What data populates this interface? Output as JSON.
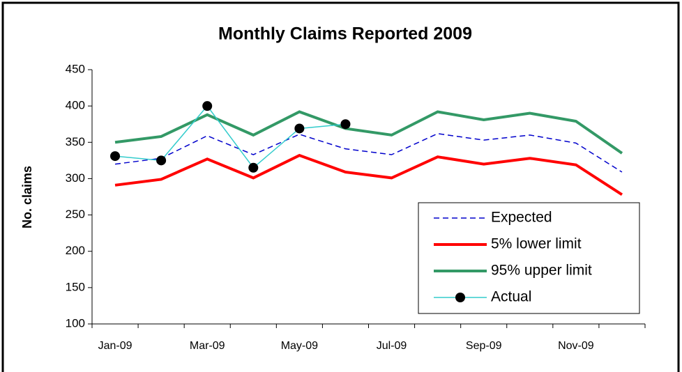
{
  "chart_data": {
    "type": "line",
    "title": "Monthly Claims Reported 2009",
    "y_label": "No. claims",
    "categories": [
      "Jan-09",
      null,
      "Mar-09",
      null,
      "May-09",
      null,
      "Jul-09",
      null,
      "Sep-09",
      null,
      "Nov-09",
      null
    ],
    "series": [
      {
        "name": "Expected",
        "color": "#0000cc",
        "style": "dashed",
        "values": [
          320,
          328,
          359,
          333,
          361,
          341,
          333,
          362,
          353,
          360,
          349,
          309
        ]
      },
      {
        "name": "5% lower limit",
        "color": "#ff0000",
        "style": "solid",
        "values": [
          291,
          299,
          327,
          301,
          332,
          309,
          301,
          330,
          320,
          328,
          319,
          278
        ]
      },
      {
        "name": "95% upper limit",
        "color": "#339966",
        "style": "solid",
        "values": [
          350,
          358,
          388,
          360,
          392,
          369,
          360,
          392,
          381,
          390,
          379,
          335
        ]
      },
      {
        "name": "Actual",
        "color": "#33cccc",
        "style": "markers",
        "values": [
          331,
          325,
          400,
          315,
          369,
          375,
          null,
          null,
          null,
          null,
          null,
          null
        ]
      }
    ],
    "ylim": [
      100,
      450
    ],
    "yticks": [
      100,
      150,
      200,
      250,
      300,
      350,
      400,
      450
    ],
    "legend": "lower right",
    "grid": false
  }
}
